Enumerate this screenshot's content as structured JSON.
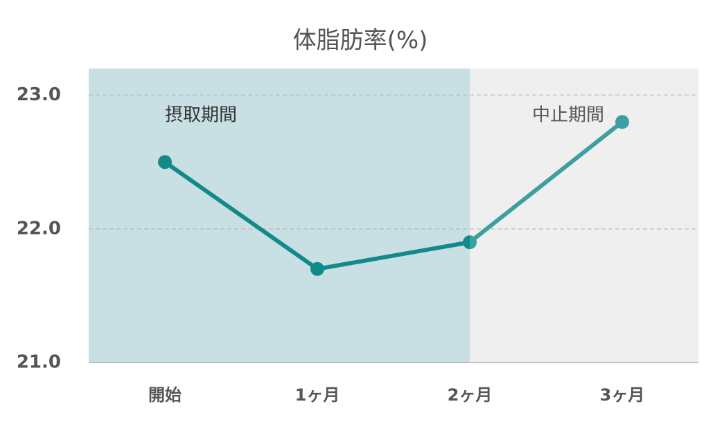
{
  "chart_data": {
    "type": "line",
    "title": "体脂肪率(%)",
    "categories": [
      "開始",
      "1ヶ月",
      "2ヶ月",
      "3ヶ月"
    ],
    "series": [
      {
        "name": "体脂肪率",
        "color": "#138a8a",
        "values": [
          22.5,
          21.7,
          21.9,
          22.8
        ]
      }
    ],
    "annotations": [
      "摂取期間",
      "中止期間"
    ],
    "ylim": [
      21,
      23.2
    ],
    "yticks": [
      {
        "value": 21,
        "label": "21.0"
      },
      {
        "value": 22,
        "label": "22.0"
      },
      {
        "value": 23,
        "label": "23.0"
      }
    ],
    "grid": true
  }
}
